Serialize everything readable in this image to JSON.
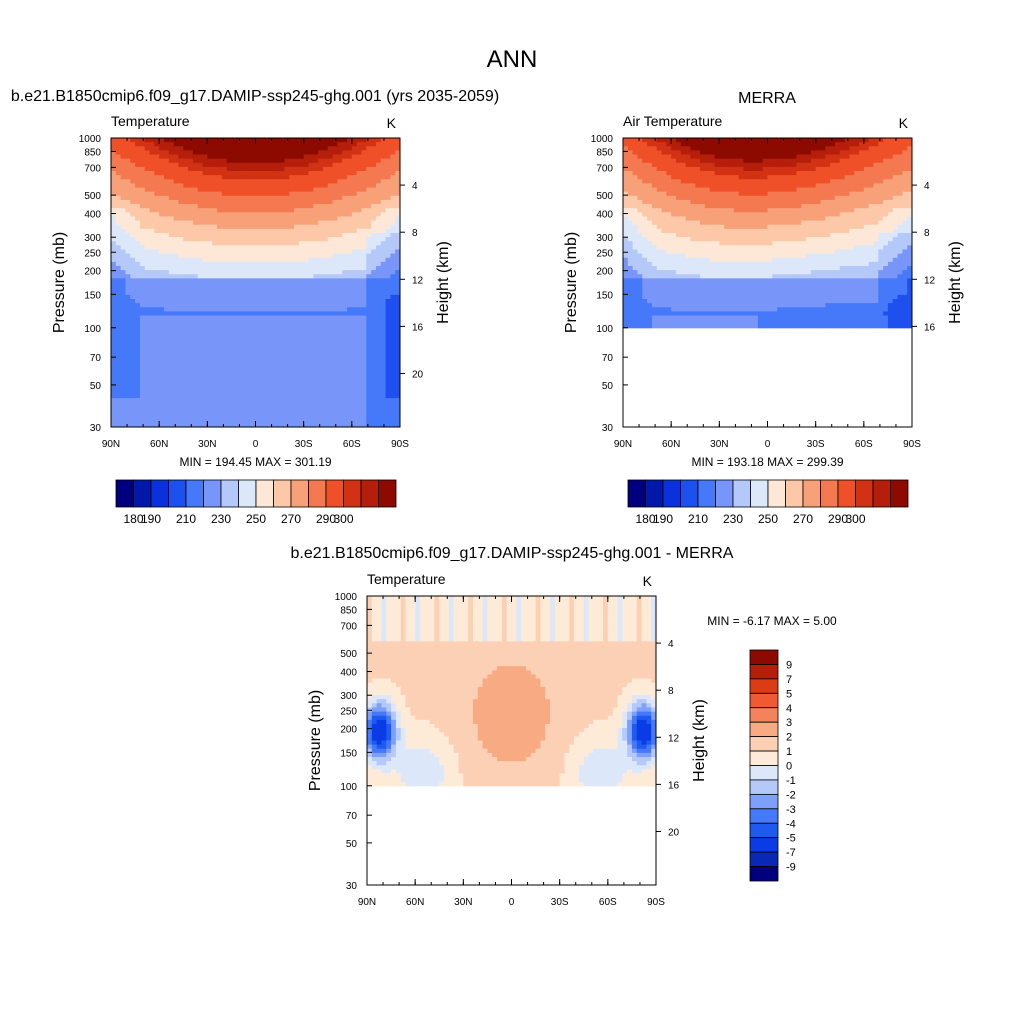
{
  "figure": {
    "title": "ANN"
  },
  "colors": {
    "temperature_scale": [
      "#00007f",
      "#0019a8",
      "#0a32dc",
      "#1e50f0",
      "#4678fa",
      "#7896fa",
      "#b4c8fa",
      "#dce8fa",
      "#fde8d8",
      "#fcc8a8",
      "#f8a078",
      "#f47850",
      "#f05028",
      "#d23214",
      "#b41e0a",
      "#8c0a00"
    ],
    "difference_scale": [
      "#00007f",
      "#0a28b4",
      "#0a3ce6",
      "#1e5af0",
      "#4678fa",
      "#7da0fa",
      "#b4c8fa",
      "#dce8fa",
      "#fdebd8",
      "#fcd0b4",
      "#f8aa82",
      "#f4825a",
      "#f05a32",
      "#dc3c14",
      "#b41e0a",
      "#8c0a00"
    ]
  },
  "chart_data": [
    {
      "id": "model",
      "type": "heatmap",
      "title": "b.e21.B1850cmip6.f09_g17.DAMIP-ssp245-ghg.001 (yrs 2035-2059)",
      "left_label": "Temperature",
      "units": "K",
      "xlabel": "",
      "ylabel": "Pressure (mb)",
      "y2label": "Height (km)",
      "x_ticks": [
        "90N",
        "60N",
        "30N",
        "0",
        "30S",
        "60S",
        "90S"
      ],
      "xlim": [
        90,
        -90
      ],
      "ylim_mb": [
        1000,
        30
      ],
      "y_ticks": [
        30,
        50,
        70,
        100,
        150,
        200,
        250,
        300,
        400,
        500,
        700,
        850,
        1000
      ],
      "y2_ticks_km": [
        4,
        8,
        12,
        16,
        20
      ],
      "data_top_mb": 30,
      "min": 194.45,
      "max": 301.19,
      "stats_text": "MIN = 194.45  MAX = 301.19",
      "colorbar_levels": [
        180,
        190,
        200,
        210,
        220,
        230,
        240,
        250,
        260,
        270,
        280,
        290,
        300
      ],
      "colorbar_labels": [
        "180",
        "190",
        "210",
        "230",
        "250",
        "270",
        "290",
        "300"
      ]
    },
    {
      "id": "obs",
      "type": "heatmap",
      "title": "MERRA",
      "left_label": "Air Temperature",
      "units": "K",
      "xlabel": "",
      "ylabel": "Pressure (mb)",
      "y2label": "Height (km)",
      "x_ticks": [
        "90N",
        "60N",
        "30N",
        "0",
        "30S",
        "60S",
        "90S"
      ],
      "xlim": [
        90,
        -90
      ],
      "ylim_mb": [
        1000,
        30
      ],
      "y_ticks": [
        30,
        50,
        70,
        100,
        150,
        200,
        250,
        300,
        400,
        500,
        700,
        850,
        1000
      ],
      "y2_ticks_km": [
        4,
        8,
        12,
        16
      ],
      "data_top_mb": 100,
      "min": 193.18,
      "max": 299.39,
      "stats_text": "MIN = 193.18  MAX = 299.39",
      "colorbar_levels": [
        180,
        190,
        200,
        210,
        220,
        230,
        240,
        250,
        260,
        270,
        280,
        290,
        300
      ],
      "colorbar_labels": [
        "180",
        "190",
        "210",
        "230",
        "250",
        "270",
        "290",
        "300"
      ]
    },
    {
      "id": "diff",
      "type": "heatmap",
      "title": "b.e21.B1850cmip6.f09_g17.DAMIP-ssp245-ghg.001 - MERRA",
      "left_label": "Temperature",
      "units": "K",
      "xlabel": "",
      "ylabel": "Pressure (mb)",
      "y2label": "Height (km)",
      "x_ticks": [
        "90N",
        "60N",
        "30N",
        "0",
        "30S",
        "60S",
        "90S"
      ],
      "xlim": [
        90,
        -90
      ],
      "ylim_mb": [
        1000,
        30
      ],
      "y_ticks": [
        30,
        50,
        70,
        100,
        150,
        200,
        250,
        300,
        400,
        500,
        700,
        850,
        1000
      ],
      "y2_ticks_km": [
        4,
        8,
        12,
        16,
        20
      ],
      "data_top_mb": 100,
      "min": -6.17,
      "max": 5.0,
      "stats_text": "MIN =  -6.17  MAX =   5.00",
      "colorbar_levels": [
        -9,
        -7,
        -5,
        -4,
        -3,
        -2,
        -1,
        0,
        1,
        2,
        3,
        4,
        5,
        7,
        9
      ],
      "colorbar_labels": [
        "9",
        "7",
        "5",
        "4",
        "3",
        "2",
        "1",
        "0",
        "-1",
        "-2",
        "-3",
        "-4",
        "-5",
        "-7",
        "-9"
      ]
    }
  ]
}
